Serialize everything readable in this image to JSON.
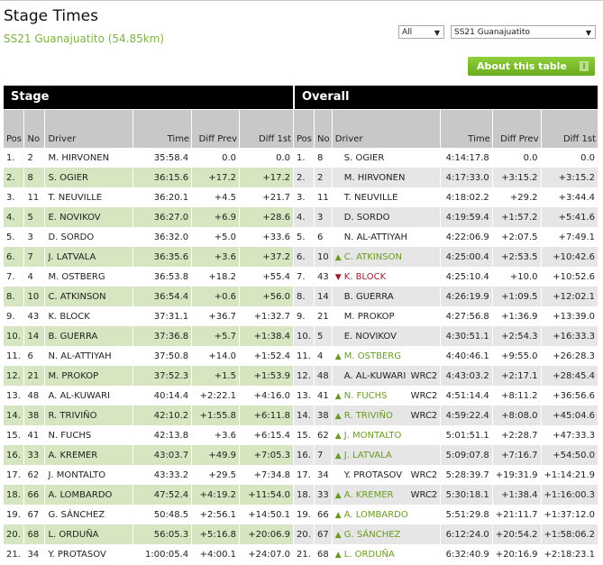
{
  "title": "Stage Times",
  "subtitle": "SS21 Guanajuatito (54.85km)",
  "filter_class": "All",
  "filter_stage": "SS21 Guanajuatito",
  "about_label": "About this table",
  "about_icon": "i",
  "colors": {
    "accent": "#7cb342",
    "up": "#6a9a1f",
    "down": "#9b1b30",
    "stage_alt_row": "#d6e6c0",
    "overall_alt_row": "#e6e6e6"
  },
  "stage": {
    "heading": "Stage",
    "columns": [
      "Pos",
      "No",
      "Driver",
      "Time",
      "Diff Prev",
      "Diff 1st"
    ],
    "rows": [
      [
        "1.",
        "2",
        "M. HIRVONEN",
        "35:58.4",
        "0.0",
        "0.0"
      ],
      [
        "2.",
        "8",
        "S. OGIER",
        "36:15.6",
        "+17.2",
        "+17.2"
      ],
      [
        "3.",
        "11",
        "T. NEUVILLE",
        "36:20.1",
        "+4.5",
        "+21.7"
      ],
      [
        "4.",
        "5",
        "E. NOVIKOV",
        "36:27.0",
        "+6.9",
        "+28.6"
      ],
      [
        "5.",
        "3",
        "D. SORDO",
        "36:32.0",
        "+5.0",
        "+33.6"
      ],
      [
        "6.",
        "7",
        "J. LATVALA",
        "36:35.6",
        "+3.6",
        "+37.2"
      ],
      [
        "7.",
        "4",
        "M. OSTBERG",
        "36:53.8",
        "+18.2",
        "+55.4"
      ],
      [
        "8.",
        "10",
        "C. ATKINSON",
        "36:54.4",
        "+0.6",
        "+56.0"
      ],
      [
        "9.",
        "43",
        "K. BLOCK",
        "37:31.1",
        "+36.7",
        "+1:32.7"
      ],
      [
        "10.",
        "14",
        "B. GUERRA",
        "37:36.8",
        "+5.7",
        "+1:38.4"
      ],
      [
        "11.",
        "6",
        "N. AL-ATTIYAH",
        "37:50.8",
        "+14.0",
        "+1:52.4"
      ],
      [
        "12.",
        "21",
        "M. PROKOP",
        "37:52.3",
        "+1.5",
        "+1:53.9"
      ],
      [
        "13.",
        "48",
        "A. AL-KUWARI",
        "40:14.4",
        "+2:22.1",
        "+4:16.0"
      ],
      [
        "14.",
        "38",
        "R. TRIVIÑO",
        "42:10.2",
        "+1:55.8",
        "+6:11.8"
      ],
      [
        "15.",
        "41",
        "N. FUCHS",
        "42:13.8",
        "+3.6",
        "+6:15.4"
      ],
      [
        "16.",
        "33",
        "A. KREMER",
        "43:03.7",
        "+49.9",
        "+7:05.3"
      ],
      [
        "17.",
        "62",
        "J. MONTALTO",
        "43:33.2",
        "+29.5",
        "+7:34.8"
      ],
      [
        "18.",
        "66",
        "A. LOMBARDO",
        "47:52.4",
        "+4:19.2",
        "+11:54.0"
      ],
      [
        "19.",
        "67",
        "G. SÁNCHEZ",
        "50:48.5",
        "+2:56.1",
        "+14:50.1"
      ],
      [
        "20.",
        "68",
        "L. ORDUÑA",
        "56:05.3",
        "+5:16.8",
        "+20:06.9"
      ],
      [
        "21.",
        "34",
        "Y. PROTASOV",
        "1:00:05.4",
        "+4:00.1",
        "+24:07.0"
      ]
    ]
  },
  "overall": {
    "heading": "Overall",
    "columns": [
      "Pos",
      "No",
      "Driver",
      "Time",
      "Diff Prev",
      "Diff 1st"
    ],
    "rows": [
      [
        "1.",
        "8",
        "",
        "S. OGIER",
        "",
        "4:14:17.8",
        "0.0",
        "0.0"
      ],
      [
        "2.",
        "2",
        "",
        "M. HIRVONEN",
        "",
        "4:17:33.0",
        "+3:15.2",
        "+3:15.2"
      ],
      [
        "3.",
        "11",
        "",
        "T. NEUVILLE",
        "",
        "4:18:02.2",
        "+29.2",
        "+3:44.4"
      ],
      [
        "4.",
        "3",
        "",
        "D. SORDO",
        "",
        "4:19:59.4",
        "+1:57.2",
        "+5:41.6"
      ],
      [
        "5.",
        "6",
        "",
        "N. AL-ATTIYAH",
        "",
        "4:22:06.9",
        "+2:07.5",
        "+7:49.1"
      ],
      [
        "6.",
        "10",
        "up",
        "C. ATKINSON",
        "",
        "4:25:00.4",
        "+2:53.5",
        "+10:42.6"
      ],
      [
        "7.",
        "43",
        "down",
        "K. BLOCK",
        "",
        "4:25:10.4",
        "+10.0",
        "+10:52.6"
      ],
      [
        "8.",
        "14",
        "",
        "B. GUERRA",
        "",
        "4:26:19.9",
        "+1:09.5",
        "+12:02.1"
      ],
      [
        "9.",
        "21",
        "",
        "M. PROKOP",
        "",
        "4:27:56.8",
        "+1:36.9",
        "+13:39.0"
      ],
      [
        "10.",
        "5",
        "",
        "E. NOVIKOV",
        "",
        "4:30:51.1",
        "+2:54.3",
        "+16:33.3"
      ],
      [
        "11.",
        "4",
        "up",
        "M. OSTBERG",
        "",
        "4:40:46.1",
        "+9:55.0",
        "+26:28.3"
      ],
      [
        "12.",
        "48",
        "",
        "A. AL-KUWARI",
        "WRC2",
        "4:43:03.2",
        "+2:17.1",
        "+28:45.4"
      ],
      [
        "13.",
        "41",
        "up",
        "N. FUCHS",
        "WRC2",
        "4:51:14.4",
        "+8:11.2",
        "+36:56.6"
      ],
      [
        "14.",
        "38",
        "up",
        "R. TRIVIÑO",
        "WRC2",
        "4:59:22.4",
        "+8:08.0",
        "+45:04.6"
      ],
      [
        "15.",
        "62",
        "up",
        "J. MONTALTO",
        "",
        "5:01:51.1",
        "+2:28.7",
        "+47:33.3"
      ],
      [
        "16.",
        "7",
        "up",
        "J. LATVALA",
        "",
        "5:09:07.8",
        "+7:16.7",
        "+54:50.0"
      ],
      [
        "17.",
        "34",
        "",
        "Y. PROTASOV",
        "WRC2",
        "5:28:39.7",
        "+19:31.9",
        "+1:14:21.9"
      ],
      [
        "18.",
        "33",
        "up",
        "A. KREMER",
        "WRC2",
        "5:30:18.1",
        "+1:38.4",
        "+1:16:00.3"
      ],
      [
        "19.",
        "66",
        "up",
        "A. LOMBARDO",
        "",
        "5:51:29.8",
        "+21:11.7",
        "+1:37:12.0"
      ],
      [
        "20.",
        "67",
        "up",
        "G. SÁNCHEZ",
        "",
        "6:12:24.0",
        "+20:54.2",
        "+1:58:06.2"
      ],
      [
        "21.",
        "68",
        "up",
        "L. ORDUÑA",
        "",
        "6:32:40.9",
        "+20:16.9",
        "+2:18:23.1"
      ]
    ]
  }
}
